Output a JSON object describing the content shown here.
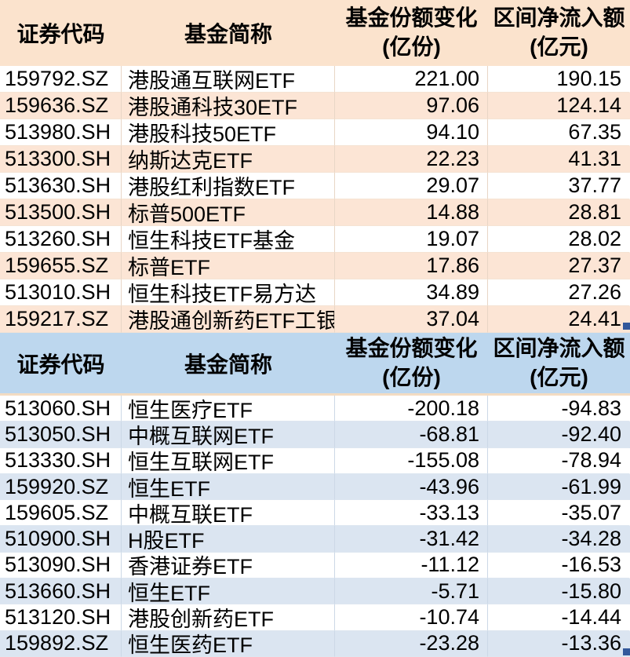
{
  "columns": {
    "code": "证券代码",
    "name": "基金简称",
    "share_change": "基金份额变化",
    "share_change_unit": "(亿份)",
    "net_inflow": "区间净流入额",
    "net_inflow_unit": "(亿元)"
  },
  "colors": {
    "inflow_header_bg": "#fbe3cd",
    "inflow_row_alt_bg": "#fce5d5",
    "outflow_header_bg": "#bdd7ee",
    "outflow_row_alt_bg": "#dbe5f1",
    "text": "#000000",
    "selection_handle": "#33589b"
  },
  "tables": [
    {
      "rows": [
        {
          "code": "159792.SZ",
          "name": "港股通互联网ETF",
          "share_change": "221.00",
          "net_inflow": "190.15"
        },
        {
          "code": "159636.SZ",
          "name": "港股通科技30ETF",
          "share_change": "97.06",
          "net_inflow": "124.14"
        },
        {
          "code": "513980.SH",
          "name": "港股科技50ETF",
          "share_change": "94.10",
          "net_inflow": "67.35"
        },
        {
          "code": "513300.SH",
          "name": "纳斯达克ETF",
          "share_change": "22.23",
          "net_inflow": "41.31"
        },
        {
          "code": "513630.SH",
          "name": "港股红利指数ETF",
          "share_change": "29.07",
          "net_inflow": "37.77"
        },
        {
          "code": "513500.SH",
          "name": "标普500ETF",
          "share_change": "14.88",
          "net_inflow": "28.81"
        },
        {
          "code": "513260.SH",
          "name": "恒生科技ETF基金",
          "share_change": "19.07",
          "net_inflow": "28.02"
        },
        {
          "code": "159655.SZ",
          "name": "标普ETF",
          "share_change": "17.86",
          "net_inflow": "27.37"
        },
        {
          "code": "513010.SH",
          "name": "恒生科技ETF易方达",
          "share_change": "34.89",
          "net_inflow": "27.26"
        },
        {
          "code": "159217.SZ",
          "name": "港股通创新药ETF工银",
          "share_change": "37.04",
          "net_inflow": "24.41"
        }
      ]
    },
    {
      "rows": [
        {
          "code": "513060.SH",
          "name": "恒生医疗ETF",
          "share_change": "-200.18",
          "net_inflow": "-94.83"
        },
        {
          "code": "513050.SH",
          "name": "中概互联网ETF",
          "share_change": "-68.81",
          "net_inflow": "-92.40"
        },
        {
          "code": "513330.SH",
          "name": "恒生互联网ETF",
          "share_change": "-155.08",
          "net_inflow": "-78.94"
        },
        {
          "code": "159920.SZ",
          "name": "恒生ETF",
          "share_change": "-43.96",
          "net_inflow": "-61.99"
        },
        {
          "code": "159605.SZ",
          "name": "中概互联ETF",
          "share_change": "-33.13",
          "net_inflow": "-35.07"
        },
        {
          "code": "510900.SH",
          "name": "H股ETF",
          "share_change": "-31.42",
          "net_inflow": "-34.28"
        },
        {
          "code": "513090.SH",
          "name": "香港证券ETF",
          "share_change": "-11.12",
          "net_inflow": "-16.53"
        },
        {
          "code": "513660.SH",
          "name": "恒生ETF",
          "share_change": "-5.71",
          "net_inflow": "-15.80"
        },
        {
          "code": "513120.SH",
          "name": "港股创新药ETF",
          "share_change": "-10.74",
          "net_inflow": "-14.44"
        },
        {
          "code": "159892.SZ",
          "name": "恒生医药ETF",
          "share_change": "-23.28",
          "net_inflow": "-13.36"
        }
      ]
    }
  ]
}
